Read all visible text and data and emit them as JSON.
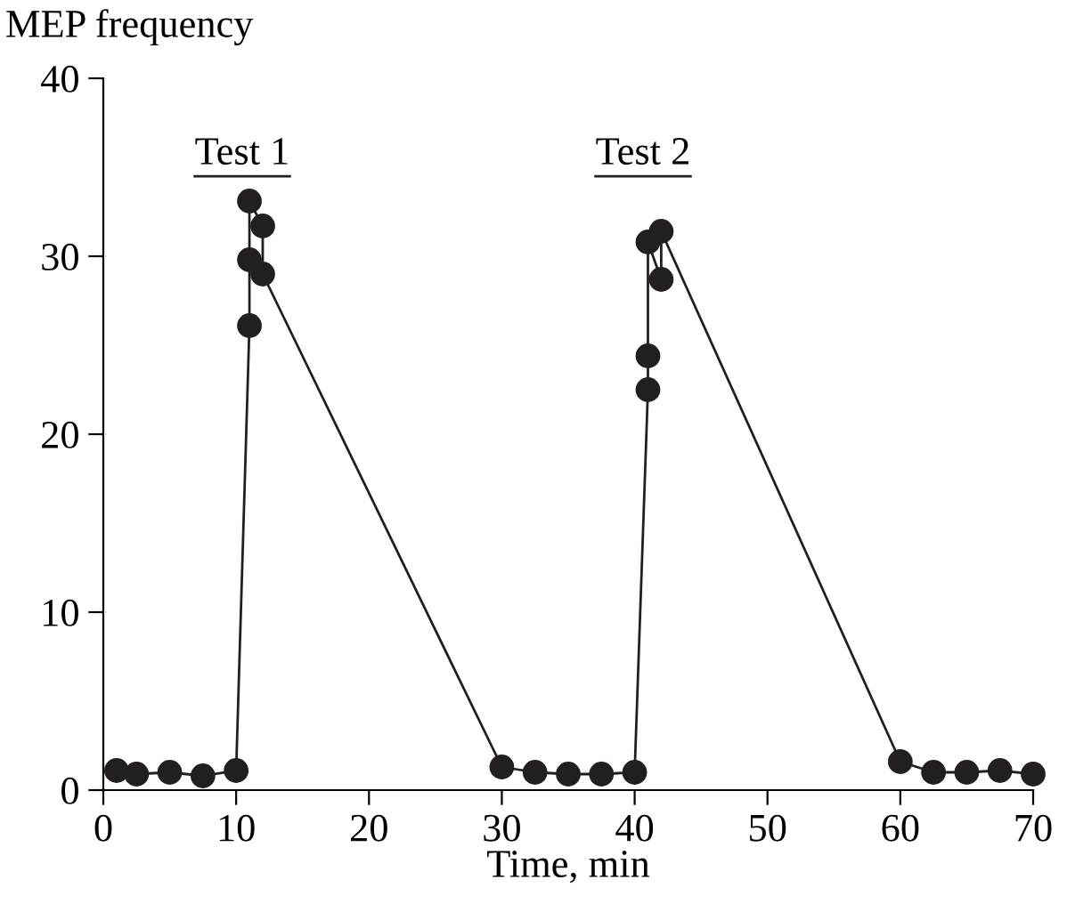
{
  "chart_data": {
    "type": "line",
    "xlabel": "Time, min",
    "ylabel": "MEP frequency",
    "x": [
      1,
      2.5,
      5,
      7.5,
      10,
      11,
      11,
      11,
      12,
      12,
      30,
      32.5,
      35,
      37.5,
      40,
      41,
      41,
      41,
      42,
      42,
      60,
      62.5,
      65,
      67.5,
      70
    ],
    "series": [
      {
        "color": "#231f20",
        "values": [
          1.1,
          0.9,
          1.0,
          0.8,
          1.1,
          26.1,
          29.8,
          33.1,
          31.7,
          29.0,
          1.3,
          1.0,
          0.9,
          0.9,
          1.0,
          22.5,
          24.4,
          30.8,
          28.7,
          31.4,
          1.6,
          1.0,
          1.0,
          1.1,
          0.9
        ]
      }
    ],
    "marker": "circle",
    "line_style": "solid",
    "grid": false,
    "xlim": [
      0,
      70
    ],
    "xticks": [
      0,
      10,
      20,
      30,
      40,
      50,
      60,
      70
    ],
    "ylim": [
      0,
      40
    ],
    "yticks": [
      0,
      10,
      20,
      30,
      40
    ],
    "annotations": [
      "Test 1",
      "Test 2"
    ]
  }
}
